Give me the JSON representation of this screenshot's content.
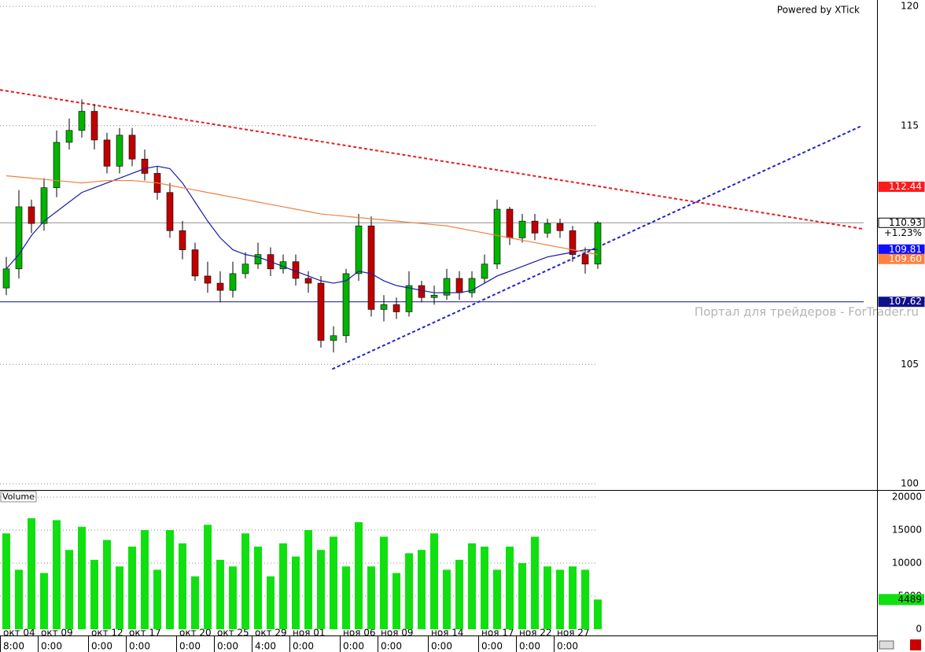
{
  "powered_by": "Powered by XTick",
  "watermark": "Портал для трейдеров - ForTrader.ru",
  "chart_data": [
    {
      "type": "candlestick",
      "categories": [
        "окт 04",
        null,
        null,
        "окт 09",
        null,
        null,
        null,
        "окт 12",
        null,
        null,
        "окт 17",
        null,
        null,
        null,
        "окт 20",
        null,
        null,
        "окт 25",
        null,
        null,
        "окт 29",
        null,
        null,
        "ноя 01",
        null,
        null,
        null,
        "ноя 06",
        null,
        null,
        "ноя 09",
        null,
        null,
        null,
        "ноя 14",
        null,
        null,
        null,
        "ноя 17",
        null,
        null,
        "ноя 22",
        null,
        null,
        "ноя 27",
        null,
        null,
        null
      ],
      "times": [
        "8:00",
        null,
        null,
        "0:00",
        null,
        null,
        null,
        "0:00",
        null,
        null,
        "0:00",
        null,
        null,
        null,
        "0:00",
        null,
        null,
        "0:00",
        null,
        null,
        "4:00",
        null,
        null,
        "0:00",
        null,
        null,
        null,
        "0:00",
        null,
        null,
        "0:00",
        null,
        null,
        null,
        "0:00",
        null,
        null,
        null,
        "0:00",
        null,
        null,
        "0:00",
        null,
        null,
        "0:00",
        null,
        null,
        null
      ],
      "open": [
        108.2,
        109.0,
        111.6,
        110.9,
        112.4,
        114.3,
        114.8,
        115.6,
        114.4,
        113.3,
        114.6,
        113.6,
        113.0,
        112.2,
        110.6,
        109.8,
        108.7,
        108.4,
        108.1,
        108.8,
        109.2,
        109.6,
        109.0,
        109.3,
        108.6,
        108.4,
        106.0,
        106.2,
        108.8,
        110.8,
        107.3,
        107.5,
        107.2,
        108.3,
        107.8,
        107.9,
        108.6,
        108.0,
        108.6,
        109.2,
        111.5,
        110.3,
        111.0,
        110.5,
        110.9,
        110.6,
        109.6,
        109.2
      ],
      "high": [
        109.5,
        112.3,
        111.9,
        112.8,
        114.8,
        115.3,
        116.1,
        115.9,
        114.7,
        114.9,
        114.9,
        114.0,
        113.3,
        112.6,
        111.0,
        110.1,
        109.3,
        108.9,
        109.3,
        109.7,
        110.1,
        109.9,
        109.6,
        109.6,
        108.9,
        108.7,
        106.6,
        109.0,
        111.3,
        111.2,
        107.9,
        107.8,
        108.9,
        108.5,
        108.3,
        109.0,
        108.9,
        108.9,
        109.6,
        111.9,
        111.6,
        111.3,
        111.3,
        111.1,
        111.1,
        110.8,
        109.9,
        111.0
      ],
      "low": [
        107.9,
        108.6,
        110.5,
        110.6,
        112.0,
        114.0,
        114.5,
        114.0,
        113.0,
        113.0,
        113.3,
        112.7,
        111.9,
        110.3,
        109.4,
        108.5,
        108.0,
        107.6,
        107.8,
        108.6,
        109.0,
        108.7,
        108.8,
        108.3,
        108.0,
        105.7,
        105.5,
        105.9,
        108.5,
        107.0,
        106.8,
        106.9,
        107.0,
        107.6,
        107.5,
        107.7,
        107.7,
        107.8,
        108.4,
        109.0,
        110.0,
        110.1,
        110.2,
        110.3,
        110.3,
        109.3,
        108.8,
        109.0
      ],
      "close": [
        109.0,
        111.6,
        110.9,
        112.4,
        114.3,
        114.8,
        115.6,
        114.4,
        113.3,
        114.6,
        113.6,
        113.0,
        112.2,
        110.6,
        109.8,
        108.7,
        108.4,
        108.1,
        108.8,
        109.2,
        109.6,
        109.0,
        109.3,
        108.6,
        108.4,
        106.0,
        106.2,
        108.8,
        110.8,
        107.3,
        107.5,
        107.2,
        108.3,
        107.8,
        107.9,
        108.6,
        108.0,
        108.6,
        109.2,
        111.5,
        110.3,
        111.0,
        110.5,
        110.9,
        110.6,
        109.6,
        109.2,
        110.93
      ],
      "up_color": "#00b400",
      "down_color": "#c00000",
      "ylim": [
        100,
        120
      ],
      "yticks": [
        100,
        105,
        115,
        120
      ],
      "grid": true,
      "series": [
        {
          "color": "#1a1aa6",
          "values": [
            109.0,
            109.6,
            110.4,
            111.0,
            111.4,
            111.8,
            112.2,
            112.4,
            112.6,
            112.8,
            113.0,
            113.2,
            113.3,
            113.2,
            112.6,
            111.8,
            111.0,
            110.3,
            109.8,
            109.6,
            109.5,
            109.3,
            109.1,
            108.9,
            108.7,
            108.5,
            108.4,
            108.5,
            108.9,
            108.8,
            108.5,
            108.3,
            108.2,
            108.1,
            108.0,
            108.0,
            108.0,
            108.1,
            108.4,
            108.7,
            108.9,
            109.1,
            109.3,
            109.5,
            109.6,
            109.7,
            109.8,
            109.81
          ]
        },
        {
          "color": "#f08040",
          "values": [
            112.9,
            112.85,
            112.8,
            112.75,
            112.7,
            112.65,
            112.6,
            112.65,
            112.7,
            112.7,
            112.7,
            112.65,
            112.6,
            112.5,
            112.4,
            112.3,
            112.2,
            112.1,
            112.0,
            111.9,
            111.8,
            111.7,
            111.6,
            111.5,
            111.4,
            111.3,
            111.25,
            111.2,
            111.15,
            111.1,
            111.05,
            111.0,
            110.95,
            110.9,
            110.85,
            110.8,
            110.7,
            110.6,
            110.5,
            110.4,
            110.3,
            110.2,
            110.1,
            110.0,
            109.9,
            109.8,
            109.7,
            109.6
          ]
        }
      ],
      "trendlines": [
        {
          "color": "#e02020",
          "x": [
            -0.5,
            68
          ],
          "y": [
            116.5,
            110.68
          ]
        },
        {
          "color": "#2020d0",
          "x": [
            25.9,
            68
          ],
          "y": [
            104.8,
            115.0
          ]
        }
      ],
      "price_labels": [
        {
          "value": 112.44,
          "bg": "#ff1a1a",
          "fg": "#ffffff"
        },
        {
          "value": 110.93,
          "bg": "#ffffff",
          "fg": "#000000",
          "line": "#909090"
        },
        {
          "value": 109.81,
          "bg": "#1010ff",
          "fg": "#ffffff"
        },
        {
          "value": 109.6,
          "label": "109.60",
          "bg": "#ff8040",
          "fg": "#ffffff"
        },
        {
          "value": 107.62,
          "bg": "#10108a",
          "fg": "#ffffff",
          "line": "#10108a"
        }
      ],
      "change_label": "+1.23%"
    },
    {
      "type": "bar",
      "title": "Volume",
      "values": [
        14500,
        9000,
        16800,
        8500,
        16500,
        12000,
        15500,
        10500,
        13500,
        9500,
        12500,
        15000,
        9000,
        15000,
        13000,
        8000,
        15800,
        10500,
        9500,
        14500,
        12500,
        8000,
        13000,
        11000,
        15000,
        12000,
        14000,
        9500,
        16200,
        9500,
        14000,
        8500,
        11500,
        12000,
        14500,
        9000,
        10500,
        13000,
        12500,
        9000,
        12500,
        10000,
        14000,
        9500,
        9000,
        9500,
        9000,
        4489
      ],
      "color": "#10e010",
      "ylim": [
        0,
        20000
      ],
      "yticks": [
        0,
        5000,
        10000,
        15000,
        20000
      ],
      "grid": true
    }
  ]
}
